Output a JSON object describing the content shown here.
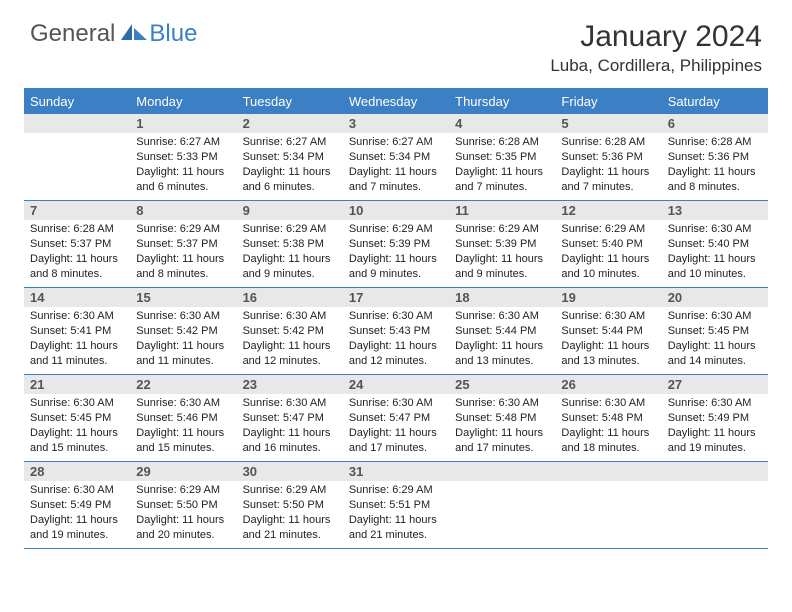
{
  "brand": {
    "part1": "General",
    "part2": "Blue"
  },
  "title": "January 2024",
  "location": "Luba, Cordillera, Philippines",
  "colors": {
    "accent": "#3b7fc4",
    "daynum_bg": "#e8e8e8",
    "text": "#333333",
    "body": "#222222"
  },
  "weekdays": [
    "Sunday",
    "Monday",
    "Tuesday",
    "Wednesday",
    "Thursday",
    "Friday",
    "Saturday"
  ],
  "weeks": [
    [
      {
        "n": "",
        "sunrise": "",
        "sunset": "",
        "daylight1": "",
        "daylight2": ""
      },
      {
        "n": "1",
        "sunrise": "Sunrise: 6:27 AM",
        "sunset": "Sunset: 5:33 PM",
        "daylight1": "Daylight: 11 hours",
        "daylight2": "and 6 minutes."
      },
      {
        "n": "2",
        "sunrise": "Sunrise: 6:27 AM",
        "sunset": "Sunset: 5:34 PM",
        "daylight1": "Daylight: 11 hours",
        "daylight2": "and 6 minutes."
      },
      {
        "n": "3",
        "sunrise": "Sunrise: 6:27 AM",
        "sunset": "Sunset: 5:34 PM",
        "daylight1": "Daylight: 11 hours",
        "daylight2": "and 7 minutes."
      },
      {
        "n": "4",
        "sunrise": "Sunrise: 6:28 AM",
        "sunset": "Sunset: 5:35 PM",
        "daylight1": "Daylight: 11 hours",
        "daylight2": "and 7 minutes."
      },
      {
        "n": "5",
        "sunrise": "Sunrise: 6:28 AM",
        "sunset": "Sunset: 5:36 PM",
        "daylight1": "Daylight: 11 hours",
        "daylight2": "and 7 minutes."
      },
      {
        "n": "6",
        "sunrise": "Sunrise: 6:28 AM",
        "sunset": "Sunset: 5:36 PM",
        "daylight1": "Daylight: 11 hours",
        "daylight2": "and 8 minutes."
      }
    ],
    [
      {
        "n": "7",
        "sunrise": "Sunrise: 6:28 AM",
        "sunset": "Sunset: 5:37 PM",
        "daylight1": "Daylight: 11 hours",
        "daylight2": "and 8 minutes."
      },
      {
        "n": "8",
        "sunrise": "Sunrise: 6:29 AM",
        "sunset": "Sunset: 5:37 PM",
        "daylight1": "Daylight: 11 hours",
        "daylight2": "and 8 minutes."
      },
      {
        "n": "9",
        "sunrise": "Sunrise: 6:29 AM",
        "sunset": "Sunset: 5:38 PM",
        "daylight1": "Daylight: 11 hours",
        "daylight2": "and 9 minutes."
      },
      {
        "n": "10",
        "sunrise": "Sunrise: 6:29 AM",
        "sunset": "Sunset: 5:39 PM",
        "daylight1": "Daylight: 11 hours",
        "daylight2": "and 9 minutes."
      },
      {
        "n": "11",
        "sunrise": "Sunrise: 6:29 AM",
        "sunset": "Sunset: 5:39 PM",
        "daylight1": "Daylight: 11 hours",
        "daylight2": "and 9 minutes."
      },
      {
        "n": "12",
        "sunrise": "Sunrise: 6:29 AM",
        "sunset": "Sunset: 5:40 PM",
        "daylight1": "Daylight: 11 hours",
        "daylight2": "and 10 minutes."
      },
      {
        "n": "13",
        "sunrise": "Sunrise: 6:30 AM",
        "sunset": "Sunset: 5:40 PM",
        "daylight1": "Daylight: 11 hours",
        "daylight2": "and 10 minutes."
      }
    ],
    [
      {
        "n": "14",
        "sunrise": "Sunrise: 6:30 AM",
        "sunset": "Sunset: 5:41 PM",
        "daylight1": "Daylight: 11 hours",
        "daylight2": "and 11 minutes."
      },
      {
        "n": "15",
        "sunrise": "Sunrise: 6:30 AM",
        "sunset": "Sunset: 5:42 PM",
        "daylight1": "Daylight: 11 hours",
        "daylight2": "and 11 minutes."
      },
      {
        "n": "16",
        "sunrise": "Sunrise: 6:30 AM",
        "sunset": "Sunset: 5:42 PM",
        "daylight1": "Daylight: 11 hours",
        "daylight2": "and 12 minutes."
      },
      {
        "n": "17",
        "sunrise": "Sunrise: 6:30 AM",
        "sunset": "Sunset: 5:43 PM",
        "daylight1": "Daylight: 11 hours",
        "daylight2": "and 12 minutes."
      },
      {
        "n": "18",
        "sunrise": "Sunrise: 6:30 AM",
        "sunset": "Sunset: 5:44 PM",
        "daylight1": "Daylight: 11 hours",
        "daylight2": "and 13 minutes."
      },
      {
        "n": "19",
        "sunrise": "Sunrise: 6:30 AM",
        "sunset": "Sunset: 5:44 PM",
        "daylight1": "Daylight: 11 hours",
        "daylight2": "and 13 minutes."
      },
      {
        "n": "20",
        "sunrise": "Sunrise: 6:30 AM",
        "sunset": "Sunset: 5:45 PM",
        "daylight1": "Daylight: 11 hours",
        "daylight2": "and 14 minutes."
      }
    ],
    [
      {
        "n": "21",
        "sunrise": "Sunrise: 6:30 AM",
        "sunset": "Sunset: 5:45 PM",
        "daylight1": "Daylight: 11 hours",
        "daylight2": "and 15 minutes."
      },
      {
        "n": "22",
        "sunrise": "Sunrise: 6:30 AM",
        "sunset": "Sunset: 5:46 PM",
        "daylight1": "Daylight: 11 hours",
        "daylight2": "and 15 minutes."
      },
      {
        "n": "23",
        "sunrise": "Sunrise: 6:30 AM",
        "sunset": "Sunset: 5:47 PM",
        "daylight1": "Daylight: 11 hours",
        "daylight2": "and 16 minutes."
      },
      {
        "n": "24",
        "sunrise": "Sunrise: 6:30 AM",
        "sunset": "Sunset: 5:47 PM",
        "daylight1": "Daylight: 11 hours",
        "daylight2": "and 17 minutes."
      },
      {
        "n": "25",
        "sunrise": "Sunrise: 6:30 AM",
        "sunset": "Sunset: 5:48 PM",
        "daylight1": "Daylight: 11 hours",
        "daylight2": "and 17 minutes."
      },
      {
        "n": "26",
        "sunrise": "Sunrise: 6:30 AM",
        "sunset": "Sunset: 5:48 PM",
        "daylight1": "Daylight: 11 hours",
        "daylight2": "and 18 minutes."
      },
      {
        "n": "27",
        "sunrise": "Sunrise: 6:30 AM",
        "sunset": "Sunset: 5:49 PM",
        "daylight1": "Daylight: 11 hours",
        "daylight2": "and 19 minutes."
      }
    ],
    [
      {
        "n": "28",
        "sunrise": "Sunrise: 6:30 AM",
        "sunset": "Sunset: 5:49 PM",
        "daylight1": "Daylight: 11 hours",
        "daylight2": "and 19 minutes."
      },
      {
        "n": "29",
        "sunrise": "Sunrise: 6:29 AM",
        "sunset": "Sunset: 5:50 PM",
        "daylight1": "Daylight: 11 hours",
        "daylight2": "and 20 minutes."
      },
      {
        "n": "30",
        "sunrise": "Sunrise: 6:29 AM",
        "sunset": "Sunset: 5:50 PM",
        "daylight1": "Daylight: 11 hours",
        "daylight2": "and 21 minutes."
      },
      {
        "n": "31",
        "sunrise": "Sunrise: 6:29 AM",
        "sunset": "Sunset: 5:51 PM",
        "daylight1": "Daylight: 11 hours",
        "daylight2": "and 21 minutes."
      },
      {
        "n": "",
        "sunrise": "",
        "sunset": "",
        "daylight1": "",
        "daylight2": ""
      },
      {
        "n": "",
        "sunrise": "",
        "sunset": "",
        "daylight1": "",
        "daylight2": ""
      },
      {
        "n": "",
        "sunrise": "",
        "sunset": "",
        "daylight1": "",
        "daylight2": ""
      }
    ]
  ]
}
